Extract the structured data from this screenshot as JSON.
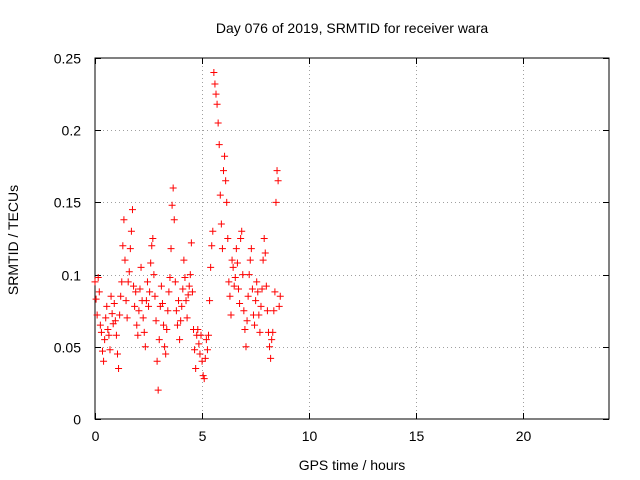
{
  "chart_data": {
    "type": "scatter",
    "title": "Day 076 of 2019, SRMTID for receiver wara",
    "xlabel": "GPS time / hours",
    "ylabel": "SRMTID / TECUs",
    "xlim": [
      0,
      24
    ],
    "ylim": [
      0,
      0.25
    ],
    "xticks": [
      0,
      5,
      10,
      15,
      20
    ],
    "xtick_labels": [
      "0",
      "5",
      "10",
      "15",
      "20"
    ],
    "yticks": [
      0,
      0.05,
      0.1,
      0.15,
      0.2,
      0.25
    ],
    "ytick_labels": [
      "0",
      "0.05",
      "0.1",
      "0.15",
      "0.2",
      "0.25"
    ],
    "grid": true,
    "marker": "+",
    "color": "#ff0000",
    "series": [
      {
        "name": "SRMTID",
        "points": [
          [
            0.0,
            0.095
          ],
          [
            0.05,
            0.083
          ],
          [
            0.1,
            0.072
          ],
          [
            0.15,
            0.098
          ],
          [
            0.2,
            0.088
          ],
          [
            0.25,
            0.065
          ],
          [
            0.3,
            0.06
          ],
          [
            0.35,
            0.047
          ],
          [
            0.4,
            0.04
          ],
          [
            0.45,
            0.055
          ],
          [
            0.5,
            0.07
          ],
          [
            0.55,
            0.078
          ],
          [
            0.6,
            0.062
          ],
          [
            0.65,
            0.058
          ],
          [
            0.7,
            0.048
          ],
          [
            0.75,
            0.085
          ],
          [
            0.8,
            0.073
          ],
          [
            0.85,
            0.066
          ],
          [
            0.9,
            0.08
          ],
          [
            0.95,
            0.068
          ],
          [
            1.0,
            0.058
          ],
          [
            1.05,
            0.045
          ],
          [
            1.1,
            0.035
          ],
          [
            1.15,
            0.072
          ],
          [
            1.2,
            0.085
          ],
          [
            1.25,
            0.095
          ],
          [
            1.3,
            0.12
          ],
          [
            1.35,
            0.138
          ],
          [
            1.4,
            0.11
          ],
          [
            1.45,
            0.082
          ],
          [
            1.5,
            0.07
          ],
          [
            1.55,
            0.095
          ],
          [
            1.6,
            0.102
          ],
          [
            1.65,
            0.118
          ],
          [
            1.7,
            0.13
          ],
          [
            1.75,
            0.145
          ],
          [
            1.8,
            0.092
          ],
          [
            1.85,
            0.078
          ],
          [
            1.9,
            0.088
          ],
          [
            1.95,
            0.065
          ],
          [
            2.0,
            0.058
          ],
          [
            2.05,
            0.075
          ],
          [
            2.1,
            0.09
          ],
          [
            2.15,
            0.105
          ],
          [
            2.2,
            0.082
          ],
          [
            2.25,
            0.07
          ],
          [
            2.3,
            0.06
          ],
          [
            2.35,
            0.05
          ],
          [
            2.4,
            0.082
          ],
          [
            2.45,
            0.095
          ],
          [
            2.5,
            0.078
          ],
          [
            2.55,
            0.088
          ],
          [
            2.6,
            0.108
          ],
          [
            2.65,
            0.12
          ],
          [
            2.7,
            0.125
          ],
          [
            2.75,
            0.1
          ],
          [
            2.8,
            0.085
          ],
          [
            2.85,
            0.068
          ],
          [
            2.9,
            0.04
          ],
          [
            2.95,
            0.02
          ],
          [
            3.0,
            0.055
          ],
          [
            3.05,
            0.078
          ],
          [
            3.1,
            0.092
          ],
          [
            3.15,
            0.08
          ],
          [
            3.2,
            0.065
          ],
          [
            3.25,
            0.05
          ],
          [
            3.3,
            0.045
          ],
          [
            3.35,
            0.062
          ],
          [
            3.4,
            0.075
          ],
          [
            3.45,
            0.088
          ],
          [
            3.5,
            0.098
          ],
          [
            3.55,
            0.118
          ],
          [
            3.6,
            0.148
          ],
          [
            3.65,
            0.16
          ],
          [
            3.7,
            0.138
          ],
          [
            3.75,
            0.095
          ],
          [
            3.8,
            0.075
          ],
          [
            3.85,
            0.065
          ],
          [
            3.9,
            0.082
          ],
          [
            3.95,
            0.055
          ],
          [
            4.0,
            0.068
          ],
          [
            4.05,
            0.078
          ],
          [
            4.1,
            0.09
          ],
          [
            4.15,
            0.11
          ],
          [
            4.2,
            0.098
          ],
          [
            4.25,
            0.082
          ],
          [
            4.3,
            0.07
          ],
          [
            4.35,
            0.086
          ],
          [
            4.4,
            0.092
          ],
          [
            4.45,
            0.1
          ],
          [
            4.5,
            0.122
          ],
          [
            4.55,
            0.088
          ],
          [
            4.6,
            0.062
          ],
          [
            4.65,
            0.048
          ],
          [
            4.7,
            0.035
          ],
          [
            4.75,
            0.058
          ],
          [
            4.8,
            0.062
          ],
          [
            4.85,
            0.052
          ],
          [
            4.9,
            0.045
          ],
          [
            4.95,
            0.058
          ],
          [
            5.0,
            0.04
          ],
          [
            5.05,
            0.03
          ],
          [
            5.1,
            0.028
          ],
          [
            5.15,
            0.042
          ],
          [
            5.2,
            0.055
          ],
          [
            5.25,
            0.048
          ],
          [
            5.3,
            0.058
          ],
          [
            5.35,
            0.082
          ],
          [
            5.4,
            0.105
          ],
          [
            5.45,
            0.12
          ],
          [
            5.5,
            0.13
          ],
          [
            5.55,
            0.24
          ],
          [
            5.6,
            0.232
          ],
          [
            5.65,
            0.225
          ],
          [
            5.7,
            0.218
          ],
          [
            5.75,
            0.205
          ],
          [
            5.8,
            0.19
          ],
          [
            5.85,
            0.155
          ],
          [
            5.9,
            0.135
          ],
          [
            5.95,
            0.118
          ],
          [
            6.0,
            0.172
          ],
          [
            6.05,
            0.182
          ],
          [
            6.1,
            0.165
          ],
          [
            6.15,
            0.15
          ],
          [
            6.2,
            0.125
          ],
          [
            6.25,
            0.095
          ],
          [
            6.3,
            0.085
          ],
          [
            6.35,
            0.072
          ],
          [
            6.4,
            0.11
          ],
          [
            6.45,
            0.105
          ],
          [
            6.5,
            0.092
          ],
          [
            6.55,
            0.098
          ],
          [
            6.6,
            0.118
          ],
          [
            6.65,
            0.108
          ],
          [
            6.7,
            0.09
          ],
          [
            6.75,
            0.08
          ],
          [
            6.8,
            0.125
          ],
          [
            6.85,
            0.13
          ],
          [
            6.9,
            0.1
          ],
          [
            6.95,
            0.075
          ],
          [
            7.0,
            0.062
          ],
          [
            7.05,
            0.05
          ],
          [
            7.1,
            0.068
          ],
          [
            7.15,
            0.085
          ],
          [
            7.2,
            0.1
          ],
          [
            7.25,
            0.11
          ],
          [
            7.3,
            0.118
          ],
          [
            7.35,
            0.09
          ],
          [
            7.4,
            0.072
          ],
          [
            7.45,
            0.065
          ],
          [
            7.5,
            0.082
          ],
          [
            7.55,
            0.095
          ],
          [
            7.6,
            0.088
          ],
          [
            7.65,
            0.072
          ],
          [
            7.7,
            0.06
          ],
          [
            7.75,
            0.078
          ],
          [
            7.8,
            0.09
          ],
          [
            7.85,
            0.11
          ],
          [
            7.9,
            0.125
          ],
          [
            7.95,
            0.115
          ],
          [
            8.0,
            0.092
          ],
          [
            8.05,
            0.075
          ],
          [
            8.1,
            0.06
          ],
          [
            8.15,
            0.05
          ],
          [
            8.2,
            0.042
          ],
          [
            8.25,
            0.055
          ],
          [
            8.3,
            0.06
          ],
          [
            8.35,
            0.075
          ],
          [
            8.4,
            0.088
          ],
          [
            8.45,
            0.15
          ],
          [
            8.5,
            0.172
          ],
          [
            8.55,
            0.165
          ],
          [
            8.6,
            0.078
          ],
          [
            8.65,
            0.085
          ]
        ]
      }
    ]
  }
}
